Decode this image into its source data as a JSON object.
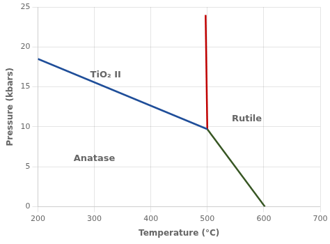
{
  "chart_data": {
    "type": "line",
    "xlabel": "Temperature (°C)",
    "ylabel": "Pressure (kbars)",
    "series": [
      {
        "x": [
          200,
          500
        ],
        "values": [
          18.5,
          9.7
        ],
        "color": "#1f4e99"
      },
      {
        "x": [
          497,
          500
        ],
        "values": [
          24,
          9.7
        ],
        "color": "#c00000"
      },
      {
        "x": [
          500,
          602
        ],
        "values": [
          9.7,
          0
        ],
        "color": "#375623"
      }
    ],
    "xlim": [
      200,
      700
    ],
    "ylim": [
      0,
      25
    ],
    "xticks": [
      200,
      300,
      400,
      500,
      600,
      700
    ],
    "yticks": [
      0,
      5,
      10,
      15,
      20,
      25
    ],
    "grid": true,
    "annotations": [
      {
        "text": "Anatase",
        "x": 300,
        "y": 6
      },
      {
        "text": "TiO₂ II",
        "x": 320,
        "y": 16.5
      },
      {
        "text": "Rutile",
        "x": 570,
        "y": 11
      }
    ]
  }
}
